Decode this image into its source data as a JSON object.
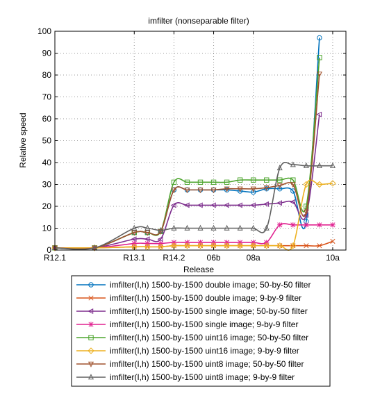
{
  "chart_data": {
    "type": "line",
    "title": "imfilter (nonseparable filter)",
    "xlabel": "Release",
    "ylabel": "Relative speed",
    "xlim": [
      0,
      11
    ],
    "ylim": [
      0,
      100
    ],
    "yticks": [
      0,
      10,
      20,
      30,
      40,
      50,
      60,
      70,
      80,
      90,
      100
    ],
    "xtick_labels": [
      {
        "x": 0,
        "label": "R12.1"
      },
      {
        "x": 3,
        "label": "R13.1"
      },
      {
        "x": 4.5,
        "label": "R14.2"
      },
      {
        "x": 6,
        "label": "06b"
      },
      {
        "x": 7.5,
        "label": "08a"
      },
      {
        "x": 10.5,
        "label": "10a"
      }
    ],
    "x": [
      0,
      1.5,
      3,
      3.5,
      4,
      4.5,
      5,
      5.5,
      6,
      6.5,
      7,
      7.5,
      8,
      8.5,
      9,
      9.5,
      10,
      10.5
    ],
    "grid": true,
    "legend_position": "below",
    "series": [
      {
        "name": "imfilter(I,h)  1500-by-1500 double image; 50-by-50 filter",
        "color": "#0072BD",
        "marker": "o",
        "values": [
          1,
          1,
          8,
          8,
          8.5,
          27.5,
          27.5,
          27.5,
          27.5,
          27.5,
          27,
          26.5,
          28,
          28,
          27,
          13,
          97,
          null
        ]
      },
      {
        "name": "imfilter(I,h)  1500-by-1500 double image; 9-by-9 filter",
        "color": "#D95319",
        "marker": "x",
        "values": [
          1,
          1,
          1.5,
          1.5,
          1.5,
          2,
          2,
          2,
          2,
          2,
          2,
          2,
          2,
          2,
          2,
          2,
          2,
          4
        ]
      },
      {
        "name": "imfilter(I,h)  1500-by-1500 single image; 50-by-50 filter",
        "color": "#7E2F8E",
        "marker": "<",
        "values": [
          1,
          1,
          5,
          5,
          5,
          20.5,
          20.5,
          20.5,
          20.5,
          20.5,
          20.5,
          20.5,
          21,
          21.5,
          22,
          16,
          62,
          null
        ]
      },
      {
        "name": "imfilter(I,h)  1500-by-1500 single image; 9-by-9 filter",
        "color": "#E0208F",
        "marker": "*",
        "values": [
          1,
          1,
          3,
          3,
          3,
          3.5,
          3.5,
          3.5,
          3.5,
          3.5,
          3.5,
          3.5,
          3.5,
          11.5,
          11.5,
          11.5,
          11.5,
          11.5
        ]
      },
      {
        "name": "imfilter(I,h)  1500-by-1500 uint16 image; 50-by-50 filter",
        "color": "#4DA52E",
        "marker": "s",
        "values": [
          1,
          1,
          8,
          8,
          8.5,
          31,
          31,
          31,
          31,
          31,
          32,
          32,
          32,
          32,
          32,
          20,
          88,
          null
        ]
      },
      {
        "name": "imfilter(I,h)  1500-by-1500 uint16 image; 9-by-9 filter",
        "color": "#EDB120",
        "marker": "d",
        "values": [
          1,
          1,
          1.5,
          1.5,
          1.5,
          2,
          2,
          2,
          2,
          2,
          2,
          2,
          2,
          2,
          2,
          30,
          30,
          30.5
        ]
      },
      {
        "name": "imfilter(I,h)  1500-by-1500 uint8 image; 50-by-50 filter",
        "color": "#A0522D",
        "marker": "v",
        "values": [
          1,
          1,
          8,
          8,
          8.5,
          27.5,
          27.5,
          27.5,
          27.5,
          28,
          28,
          28,
          28.5,
          29.5,
          30,
          17.5,
          80.5,
          null
        ]
      },
      {
        "name": "imfilter(I,h)  1500-by-1500 uint8 image; 9-by-9 filter",
        "color": "#606060",
        "marker": "^",
        "values": [
          1,
          1,
          10,
          10,
          9,
          10,
          10,
          10,
          10,
          10,
          10,
          10,
          10,
          37.5,
          39,
          38.5,
          38.5,
          38.5
        ]
      }
    ]
  }
}
